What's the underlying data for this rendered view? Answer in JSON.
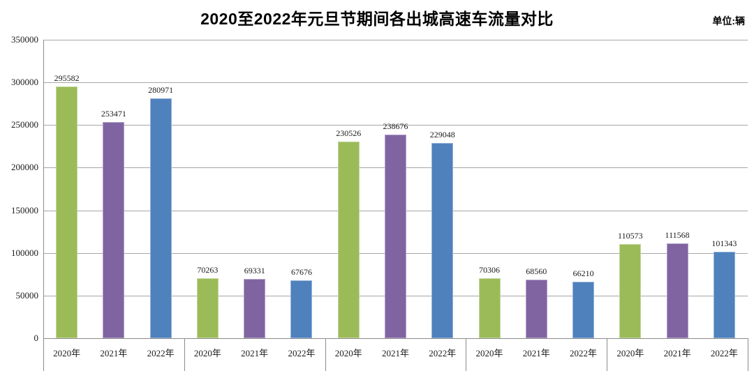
{
  "header": {
    "title": "2020至2022年元旦节期间各出城高速车流量对比",
    "unit_label": "单位:辆"
  },
  "chart_data": {
    "type": "bar",
    "title": "2020至2022年元旦节期间各出城高速车流量对比",
    "unit": "单位:辆",
    "group_count": 5,
    "group_tick_labels": [
      "2020年",
      "2021年",
      "2022年"
    ],
    "series": [
      {
        "name": "2020年",
        "color": "#9BBB59",
        "border_color": "#C3D69B",
        "values": [
          295582,
          70263,
          230526,
          70306,
          110573
        ]
      },
      {
        "name": "2021年",
        "color": "#8064A2",
        "border_color": "#B1A0C7",
        "values": [
          253471,
          69331,
          238676,
          68560,
          111568
        ]
      },
      {
        "name": "2022年",
        "color": "#4F81BD",
        "border_color": "#95B3D7",
        "values": [
          280971,
          67676,
          229048,
          66210,
          101343
        ]
      }
    ],
    "ylim": [
      0,
      350000
    ],
    "ytick_step": 50000,
    "ytick_labels": [
      "0",
      "50000",
      "100000",
      "150000",
      "200000",
      "250000",
      "300000",
      "350000"
    ],
    "grid": true,
    "data_labels": true,
    "legend": "none",
    "colors": {
      "gridline": "#A6A6A6",
      "axis": "#8C8C8C",
      "text": "#1a1a1a",
      "background": "#FFFFFF"
    }
  }
}
